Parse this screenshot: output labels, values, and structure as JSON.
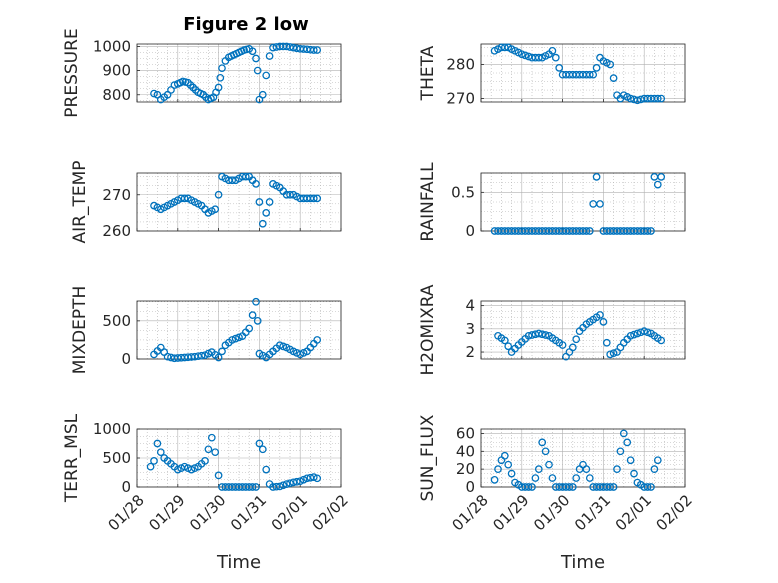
{
  "figure": {
    "title": "Figure 2 low",
    "marker_color": "#0072bd",
    "axis_color": "#262626",
    "grid_color": "#b0b0b0"
  },
  "chart_data": [
    {
      "id": "pressure",
      "type": "scatter",
      "title": "Figure 2 low",
      "ylabel": "PRESSURE",
      "xlabel": "",
      "xlim": [
        "01/28",
        "02/02"
      ],
      "ylim": [
        770,
        1010
      ],
      "yticks": [
        800,
        900,
        1000
      ],
      "xticks": [
        "01/28",
        "01/29",
        "01/30",
        "01/31",
        "02/01",
        "02/02"
      ],
      "x_dates": [
        "01/28 10:00",
        "01/28 12:00",
        "01/28 14:00",
        "01/28 16:00",
        "01/28 18:00",
        "01/28 20:00",
        "01/28 22:00",
        "01/29 00:00",
        "01/29 03:00",
        "01/29 06:00",
        "01/29 09:00",
        "01/29 12:00",
        "01/29 15:00",
        "01/29 18:00",
        "01/29 21:00",
        "01/30 00:00",
        "01/30 01:00",
        "01/30 02:00",
        "01/30 04:00",
        "01/30 06:00",
        "01/30 09:00",
        "01/30 12:00",
        "01/30 15:00",
        "01/30 18:00",
        "01/30 20:00",
        "01/30 22:00",
        "01/30 23:00",
        "01/31 00:00",
        "01/31 02:00",
        "01/31 04:00",
        "01/31 06:00",
        "01/31 08:00",
        "01/31 12:00",
        "01/31 16:00",
        "01/31 20:00",
        "02/01 00:00",
        "02/01 04:00",
        "02/01 08:00",
        "02/01 10:00"
      ],
      "values": [
        805,
        800,
        780,
        790,
        800,
        820,
        840,
        845,
        855,
        850,
        830,
        810,
        800,
        780,
        790,
        830,
        870,
        910,
        940,
        955,
        965,
        975,
        985,
        990,
        980,
        950,
        900,
        780,
        800,
        880,
        960,
        995,
        1000,
        1000,
        995,
        990,
        988,
        985,
        985
      ],
      "show_grid": true
    },
    {
      "id": "theta",
      "type": "scatter",
      "ylabel": "THETA",
      "xlabel": "",
      "xlim": [
        "01/28",
        "02/02"
      ],
      "ylim": [
        269,
        286
      ],
      "yticks": [
        270,
        280
      ],
      "xticks": [
        "01/28",
        "01/29",
        "01/30",
        "01/31",
        "02/01",
        "02/02"
      ],
      "x_dates": [
        "01/28 08:00",
        "01/28 12:00",
        "01/28 16:00",
        "01/28 20:00",
        "01/29 00:00",
        "01/29 06:00",
        "01/29 12:00",
        "01/29 16:00",
        "01/29 18:00",
        "01/29 20:00",
        "01/29 22:00",
        "01/30 00:00",
        "01/30 06:00",
        "01/30 12:00",
        "01/30 18:00",
        "01/30 20:00",
        "01/30 22:00",
        "01/31 00:00",
        "01/31 04:00",
        "01/31 06:00",
        "01/31 08:00",
        "01/31 10:00",
        "01/31 12:00",
        "01/31 16:00",
        "01/31 20:00",
        "02/01 00:00",
        "02/01 06:00",
        "02/01 10:00"
      ],
      "values": [
        284,
        285,
        285,
        284,
        283,
        282,
        282,
        283,
        284,
        282,
        279,
        277,
        277,
        277,
        277,
        279,
        282,
        281,
        280,
        276,
        271,
        270,
        271,
        270,
        269.5,
        270,
        270,
        270
      ],
      "show_grid": true
    },
    {
      "id": "air_temp",
      "type": "scatter",
      "ylabel": "AIR_TEMP",
      "xlabel": "",
      "xlim": [
        "01/28",
        "02/02"
      ],
      "ylim": [
        260,
        276
      ],
      "yticks": [
        260,
        270
      ],
      "xticks": [
        "01/28",
        "01/29",
        "01/30",
        "01/31",
        "02/01",
        "02/02"
      ],
      "x_dates": [
        "01/28 10:00",
        "01/28 14:00",
        "01/28 18:00",
        "01/28 22:00",
        "01/29 02:00",
        "01/29 06:00",
        "01/29 10:00",
        "01/29 14:00",
        "01/29 18:00",
        "01/29 22:00",
        "01/30 00:00",
        "01/30 02:00",
        "01/30 06:00",
        "01/30 10:00",
        "01/30 14:00",
        "01/30 18:00",
        "01/30 22:00",
        "01/31 00:00",
        "01/31 02:00",
        "01/31 04:00",
        "01/31 06:00",
        "01/31 08:00",
        "01/31 12:00",
        "01/31 16:00",
        "01/31 20:00",
        "02/01 00:00",
        "02/01 06:00",
        "02/01 10:00"
      ],
      "values": [
        267,
        266,
        267,
        268,
        269,
        269,
        268,
        267,
        265,
        266,
        270,
        275,
        274,
        274,
        275,
        275,
        273,
        268,
        262,
        265,
        268,
        273,
        272,
        270,
        270,
        269,
        269,
        269
      ],
      "show_grid": true
    },
    {
      "id": "rainfall",
      "type": "scatter",
      "ylabel": "RAINFALL",
      "xlabel": "",
      "xlim": [
        "01/28",
        "02/02"
      ],
      "ylim": [
        0,
        0.75
      ],
      "yticks": [
        0,
        0.5
      ],
      "xticks": [
        "01/28",
        "01/29",
        "01/30",
        "01/31",
        "02/01",
        "02/02"
      ],
      "x_dates": [
        "01/28 08:00",
        "01/28 16:00",
        "01/29 00:00",
        "01/29 08:00",
        "01/29 16:00",
        "01/30 00:00",
        "01/30 08:00",
        "01/30 16:00",
        "01/30 20:00",
        "01/31 00:00",
        "01/31 08:00",
        "01/31 16:00",
        "02/01 00:00",
        "02/01 04:00",
        "02/01 06:00",
        "02/01 08:00",
        "02/01 10:00"
      ],
      "values": [
        0,
        0,
        0,
        0,
        0,
        0,
        0,
        0,
        0.7,
        0,
        0,
        0,
        0,
        0,
        0.7,
        0.6,
        0.7
      ],
      "show_grid": true
    },
    {
      "id": "mixdepth",
      "type": "scatter",
      "ylabel": "MIXDEPTH",
      "xlabel": "",
      "xlim": [
        "01/28",
        "02/02"
      ],
      "ylim": [
        0,
        760
      ],
      "yticks": [
        0,
        500
      ],
      "xticks": [
        "01/28",
        "01/29",
        "01/30",
        "01/31",
        "02/01",
        "02/02"
      ],
      "x_dates": [
        "01/28 10:00",
        "01/28 14:00",
        "01/28 18:00",
        "01/28 22:00",
        "01/29 04:00",
        "01/29 10:00",
        "01/29 16:00",
        "01/29 20:00",
        "01/30 00:00",
        "01/30 04:00",
        "01/30 08:00",
        "01/30 14:00",
        "01/30 18:00",
        "01/30 22:00",
        "01/30 23:00",
        "01/31 00:00",
        "01/31 04:00",
        "01/31 08:00",
        "01/31 12:00",
        "01/31 16:00",
        "01/31 20:00",
        "02/01 00:00",
        "02/01 04:00",
        "02/01 08:00",
        "02/01 10:00"
      ],
      "values": [
        60,
        150,
        30,
        10,
        20,
        30,
        50,
        90,
        20,
        180,
        250,
        300,
        400,
        750,
        500,
        70,
        20,
        100,
        180,
        150,
        100,
        60,
        100,
        200,
        250
      ],
      "show_grid": true
    },
    {
      "id": "h2omixra",
      "type": "scatter",
      "ylabel": "H2OMIXRA",
      "xlabel": "",
      "xlim": [
        "01/28",
        "02/02"
      ],
      "ylim": [
        1.7,
        4.2
      ],
      "yticks": [
        2,
        3,
        4
      ],
      "xticks": [
        "01/28",
        "01/29",
        "01/30",
        "01/31",
        "02/01",
        "02/02"
      ],
      "x_dates": [
        "01/28 10:00",
        "01/28 14:00",
        "01/28 18:00",
        "01/28 22:00",
        "01/29 04:00",
        "01/29 10:00",
        "01/29 16:00",
        "01/29 20:00",
        "01/30 00:00",
        "01/30 02:00",
        "01/30 06:00",
        "01/30 10:00",
        "01/30 14:00",
        "01/30 18:00",
        "01/30 22:00",
        "01/31 00:00",
        "01/31 02:00",
        "01/31 04:00",
        "01/31 08:00",
        "01/31 12:00",
        "01/31 16:00",
        "01/31 20:00",
        "02/01 00:00",
        "02/01 04:00",
        "02/01 08:00",
        "02/01 10:00"
      ],
      "values": [
        2.7,
        2.5,
        2.0,
        2.3,
        2.7,
        2.8,
        2.7,
        2.5,
        2.3,
        1.8,
        2.2,
        2.9,
        3.2,
        3.4,
        3.6,
        3.3,
        2.4,
        1.9,
        2.0,
        2.4,
        2.7,
        2.8,
        2.9,
        2.8,
        2.6,
        2.5
      ],
      "show_grid": true
    },
    {
      "id": "terr_msl",
      "type": "scatter",
      "ylabel": "TERR_MSL",
      "xlabel": "Time",
      "xlim": [
        "01/28",
        "02/02"
      ],
      "ylim": [
        0,
        1000
      ],
      "yticks": [
        0,
        500,
        1000
      ],
      "xticks": [
        "01/28",
        "01/29",
        "01/30",
        "01/31",
        "02/01",
        "02/02"
      ],
      "x_dates": [
        "01/28 08:00",
        "01/28 10:00",
        "01/28 12:00",
        "01/28 14:00",
        "01/28 16:00",
        "01/28 20:00",
        "01/29 00:00",
        "01/29 04:00",
        "01/29 08:00",
        "01/29 12:00",
        "01/29 16:00",
        "01/29 20:00",
        "01/29 22:00",
        "01/30 00:00",
        "01/30 02:00",
        "01/30 06:00",
        "01/30 12:00",
        "01/30 18:00",
        "01/30 22:00",
        "01/31 00:00",
        "01/31 02:00",
        "01/31 04:00",
        "01/31 06:00",
        "01/31 08:00",
        "01/31 12:00",
        "01/31 16:00",
        "01/31 20:00",
        "02/01 00:00",
        "02/01 04:00",
        "02/01 08:00",
        "02/01 10:00"
      ],
      "values": [
        350,
        450,
        750,
        600,
        500,
        400,
        300,
        350,
        300,
        350,
        450,
        850,
        600,
        200,
        0,
        0,
        0,
        0,
        0,
        750,
        650,
        300,
        50,
        0,
        10,
        50,
        80,
        100,
        150,
        170,
        150
      ],
      "show_grid": true
    },
    {
      "id": "sun_flux",
      "type": "scatter",
      "ylabel": "SUN_FLUX",
      "xlabel": "Time",
      "xlim": [
        "01/28",
        "02/02"
      ],
      "ylim": [
        0,
        65
      ],
      "yticks": [
        0,
        20,
        40,
        60
      ],
      "xticks": [
        "01/28",
        "01/29",
        "01/30",
        "01/31",
        "02/01",
        "02/02"
      ],
      "x_dates": [
        "01/28 08:00",
        "01/28 10:00",
        "01/28 12:00",
        "01/28 14:00",
        "01/28 16:00",
        "01/28 18:00",
        "01/28 20:00",
        "01/29 00:00",
        "01/29 06:00",
        "01/29 10:00",
        "01/29 12:00",
        "01/29 14:00",
        "01/29 16:00",
        "01/29 18:00",
        "01/29 20:00",
        "01/30 00:00",
        "01/30 06:00",
        "01/30 10:00",
        "01/30 12:00",
        "01/30 14:00",
        "01/30 16:00",
        "01/30 18:00",
        "01/31 00:00",
        "01/31 06:00",
        "01/31 08:00",
        "01/31 10:00",
        "01/31 12:00",
        "01/31 14:00",
        "01/31 16:00",
        "01/31 18:00",
        "01/31 20:00",
        "02/01 00:00",
        "02/01 04:00",
        "02/01 06:00",
        "02/01 08:00"
      ],
      "values": [
        8,
        20,
        30,
        35,
        25,
        15,
        5,
        0,
        0,
        20,
        50,
        40,
        25,
        10,
        0,
        0,
        0,
        20,
        25,
        20,
        10,
        0,
        0,
        0,
        20,
        40,
        60,
        50,
        30,
        15,
        5,
        0,
        0,
        20,
        30
      ],
      "show_grid": true
    }
  ]
}
